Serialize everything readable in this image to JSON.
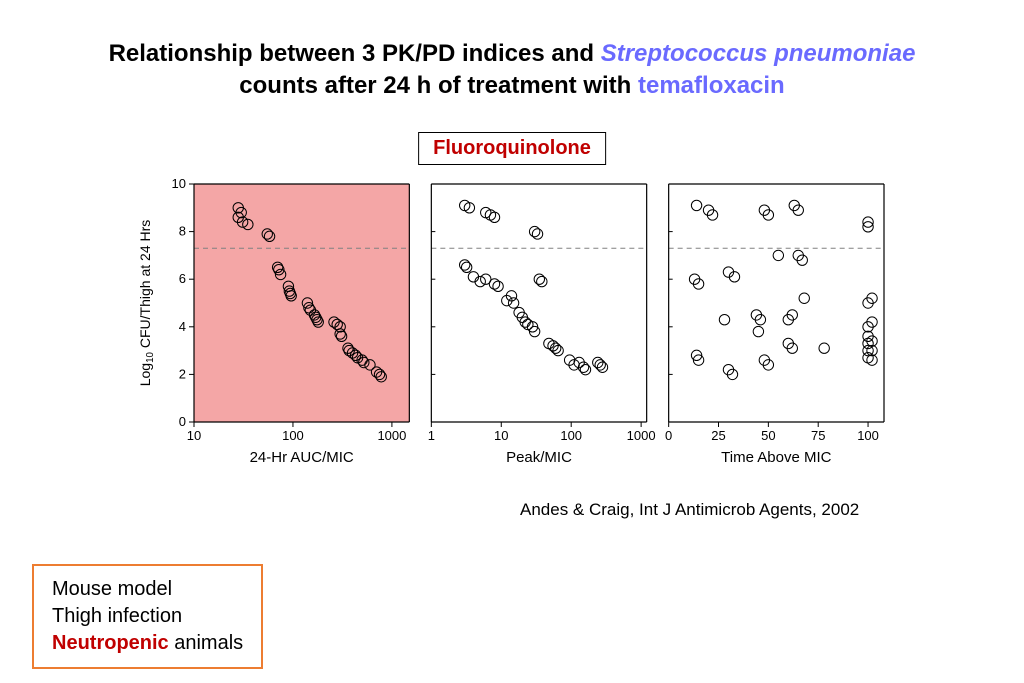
{
  "title": {
    "pre": "Relationship between 3 PK/PD indices and ",
    "species": "Streptococcus pneumoniae",
    "mid": " counts after 24 h of treatment with ",
    "drug": "temafloxacin"
  },
  "drug_badge": "Fluoroquinolone",
  "citation": "Andes & Craig, Int J Antimicrob Agents, 2002",
  "info_box": {
    "line1": "Mouse model",
    "line2": "Thigh infection",
    "line3a": "Neutropenic",
    "line3b": " animals",
    "border_color": "#ed7d31"
  },
  "chart": {
    "panel_gap": 22,
    "plot_bottom_pad": 56,
    "plot_left_pad": 58,
    "axis_color": "#000000",
    "tick_color": "#000000",
    "axis_width": 1.2,
    "dashed_y": 7.3,
    "dashed_color": "#808080",
    "ylabel": "Log10 CFU/Thigh at 24 Hrs",
    "ylabel_sub": "10",
    "ylabel_fontsize": 14,
    "xlabel_fontsize": 15,
    "tick_fontsize": 13,
    "marker_r": 5.2,
    "marker_stroke": "#000000",
    "marker_stroke_w": 1,
    "marker_fill": "none",
    "ylim": [
      0,
      10
    ],
    "yticks": [
      0,
      2,
      4,
      6,
      8,
      10
    ],
    "panels": [
      {
        "xlabel": "24-Hr AUC/MIC",
        "scale": "log",
        "xlim": [
          10,
          1500
        ],
        "xticks": [
          10,
          100,
          1000
        ],
        "highlight": "#f4a6a6",
        "points": [
          [
            28,
            9.0
          ],
          [
            30,
            8.8
          ],
          [
            28,
            8.6
          ],
          [
            31,
            8.4
          ],
          [
            35,
            8.3
          ],
          [
            55,
            7.9
          ],
          [
            58,
            7.8
          ],
          [
            70,
            6.5
          ],
          [
            72,
            6.4
          ],
          [
            75,
            6.2
          ],
          [
            90,
            5.7
          ],
          [
            92,
            5.5
          ],
          [
            94,
            5.4
          ],
          [
            96,
            5.3
          ],
          [
            140,
            5.0
          ],
          [
            145,
            4.8
          ],
          [
            150,
            4.7
          ],
          [
            165,
            4.5
          ],
          [
            170,
            4.4
          ],
          [
            175,
            4.3
          ],
          [
            180,
            4.2
          ],
          [
            260,
            4.2
          ],
          [
            280,
            4.1
          ],
          [
            300,
            4.0
          ],
          [
            300,
            3.7
          ],
          [
            310,
            3.6
          ],
          [
            360,
            3.1
          ],
          [
            370,
            3.0
          ],
          [
            400,
            2.9
          ],
          [
            430,
            2.8
          ],
          [
            450,
            2.7
          ],
          [
            500,
            2.6
          ],
          [
            520,
            2.5
          ],
          [
            600,
            2.4
          ],
          [
            700,
            2.1
          ],
          [
            750,
            2.0
          ],
          [
            780,
            1.9
          ]
        ]
      },
      {
        "xlabel": "Peak/MIC",
        "scale": "log",
        "xlim": [
          1,
          1200
        ],
        "xticks": [
          1,
          10,
          100,
          1000
        ],
        "highlight": null,
        "points": [
          [
            3,
            9.1
          ],
          [
            3.5,
            9.0
          ],
          [
            6,
            8.8
          ],
          [
            7,
            8.7
          ],
          [
            8,
            8.6
          ],
          [
            30,
            8.0
          ],
          [
            33,
            7.9
          ],
          [
            3,
            6.6
          ],
          [
            3.2,
            6.5
          ],
          [
            4,
            6.1
          ],
          [
            5,
            5.9
          ],
          [
            6,
            6.0
          ],
          [
            8,
            5.8
          ],
          [
            9,
            5.7
          ],
          [
            12,
            5.1
          ],
          [
            14,
            5.3
          ],
          [
            15,
            5.0
          ],
          [
            35,
            6.0
          ],
          [
            38,
            5.9
          ],
          [
            18,
            4.6
          ],
          [
            20,
            4.4
          ],
          [
            22,
            4.2
          ],
          [
            24,
            4.1
          ],
          [
            28,
            4.0
          ],
          [
            30,
            3.8
          ],
          [
            48,
            3.3
          ],
          [
            55,
            3.2
          ],
          [
            60,
            3.1
          ],
          [
            65,
            3.0
          ],
          [
            95,
            2.6
          ],
          [
            110,
            2.4
          ],
          [
            130,
            2.5
          ],
          [
            150,
            2.3
          ],
          [
            160,
            2.2
          ],
          [
            240,
            2.5
          ],
          [
            260,
            2.4
          ],
          [
            280,
            2.3
          ]
        ]
      },
      {
        "xlabel": "Time Above MIC",
        "scale": "linear",
        "xlim": [
          0,
          108
        ],
        "xticks": [
          0,
          25,
          50,
          75,
          100
        ],
        "highlight": null,
        "points": [
          [
            14,
            9.1
          ],
          [
            20,
            8.9
          ],
          [
            22,
            8.7
          ],
          [
            48,
            8.9
          ],
          [
            50,
            8.7
          ],
          [
            63,
            9.1
          ],
          [
            65,
            8.9
          ],
          [
            100,
            8.4
          ],
          [
            100,
            8.2
          ],
          [
            13,
            6.0
          ],
          [
            15,
            5.8
          ],
          [
            30,
            6.3
          ],
          [
            33,
            6.1
          ],
          [
            55,
            7.0
          ],
          [
            65,
            7.0
          ],
          [
            67,
            6.8
          ],
          [
            28,
            4.3
          ],
          [
            44,
            4.5
          ],
          [
            46,
            4.3
          ],
          [
            45,
            3.8
          ],
          [
            60,
            4.3
          ],
          [
            62,
            4.5
          ],
          [
            68,
            5.2
          ],
          [
            100,
            5.0
          ],
          [
            102,
            5.2
          ],
          [
            14,
            2.8
          ],
          [
            15,
            2.6
          ],
          [
            30,
            2.2
          ],
          [
            32,
            2.0
          ],
          [
            48,
            2.6
          ],
          [
            50,
            2.4
          ],
          [
            60,
            3.3
          ],
          [
            62,
            3.1
          ],
          [
            78,
            3.1
          ],
          [
            100,
            3.0
          ],
          [
            100,
            3.3
          ],
          [
            100,
            3.6
          ],
          [
            100,
            2.7
          ],
          [
            102,
            3.0
          ],
          [
            102,
            3.4
          ],
          [
            102,
            2.6
          ],
          [
            100,
            4.0
          ],
          [
            102,
            4.2
          ]
        ]
      }
    ]
  }
}
